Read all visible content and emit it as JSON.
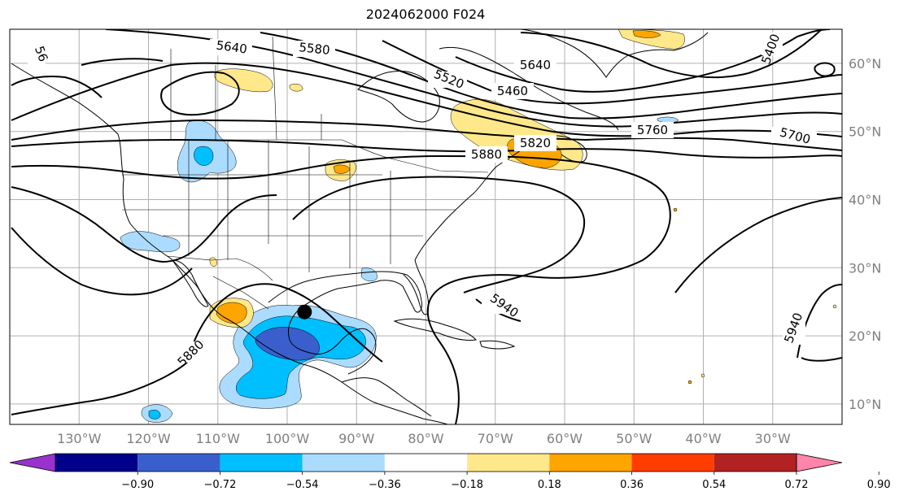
{
  "title": "2024062000 F024",
  "map": {
    "projection": "plate-carree",
    "lon_range": [
      -140,
      -20
    ],
    "lat_range": [
      7,
      65
    ],
    "gridlines": true,
    "lon_labels": [
      "130°W",
      "120°W",
      "110°W",
      "100°W",
      "90°W",
      "80°W",
      "70°W",
      "60°W",
      "50°W",
      "40°W",
      "30°W"
    ],
    "lat_labels": [
      "10°N",
      "20°N",
      "30°N",
      "40°N",
      "50°N",
      "60°N"
    ],
    "contour_labels": [
      "5640",
      "5580",
      "5520",
      "5460",
      "5640",
      "5400",
      "5760",
      "5700",
      "5820",
      "5880",
      "5940",
      "5940",
      "5880",
      "56"
    ],
    "marker": {
      "name": "storm-center",
      "lon": -97.5,
      "lat": 23.5
    }
  },
  "colorbar": {
    "tick_labels": [
      "−0.90",
      "−0.72",
      "−0.54",
      "−0.36",
      "−0.18",
      "0.18",
      "0.36",
      "0.54",
      "0.72",
      "0.90"
    ],
    "colors": [
      "#9932cc",
      "#00008b",
      "#3a5fcd",
      "#00bfff",
      "#abdcff",
      "#ffffff",
      "#ffe88a",
      "#ffa500",
      "#ff3d00",
      "#b22222",
      "#ff85aa"
    ]
  }
}
